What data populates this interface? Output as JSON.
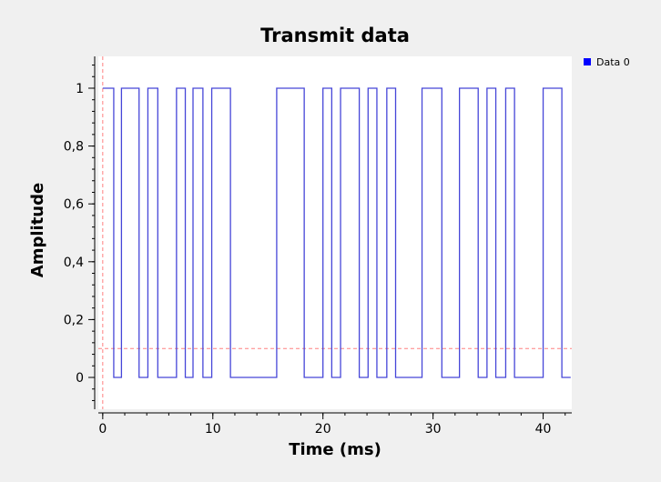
{
  "chart_data": {
    "type": "line",
    "title": "Transmit data",
    "xlabel": "Time (ms)",
    "ylabel": "Amplitude",
    "xlim": [
      -0.4,
      42.6
    ],
    "ylim": [
      -0.11,
      1.11
    ],
    "x_ticks": [
      0,
      10,
      20,
      30,
      40
    ],
    "y_ticks": [
      0,
      0.2,
      0.4,
      0.6,
      0.8,
      1
    ],
    "y_tick_labels": [
      "0",
      "0,2",
      "0,4",
      "0,6",
      "0,8",
      "1"
    ],
    "x_minor_step": 2,
    "y_minor_step": 0.04,
    "grid": false,
    "legend_position": "top-right",
    "marker_lines": {
      "x": 0,
      "y": 0.1,
      "color": "#ff8080"
    },
    "series": [
      {
        "name": "Data 0",
        "color": "#4646d8",
        "step": true,
        "x": [
          0,
          1,
          1.7,
          3.3,
          4.1,
          5,
          6.7,
          7.5,
          8.2,
          9.1,
          9.9,
          11.6,
          15.8,
          18.3,
          20,
          20.8,
          21.6,
          23.3,
          24.1,
          24.9,
          25.8,
          26.6,
          29,
          30.8,
          32.4,
          34.1,
          34.9,
          35.7,
          36.6,
          37.4,
          40,
          41.7,
          42.5
        ],
        "y": [
          1,
          0,
          1,
          0,
          1,
          0,
          1,
          0,
          1,
          0,
          1,
          0,
          1,
          0,
          1,
          0,
          1,
          0,
          1,
          0,
          1,
          0,
          1,
          0,
          1,
          0,
          1,
          0,
          1,
          0,
          1,
          0,
          0
        ]
      }
    ]
  }
}
